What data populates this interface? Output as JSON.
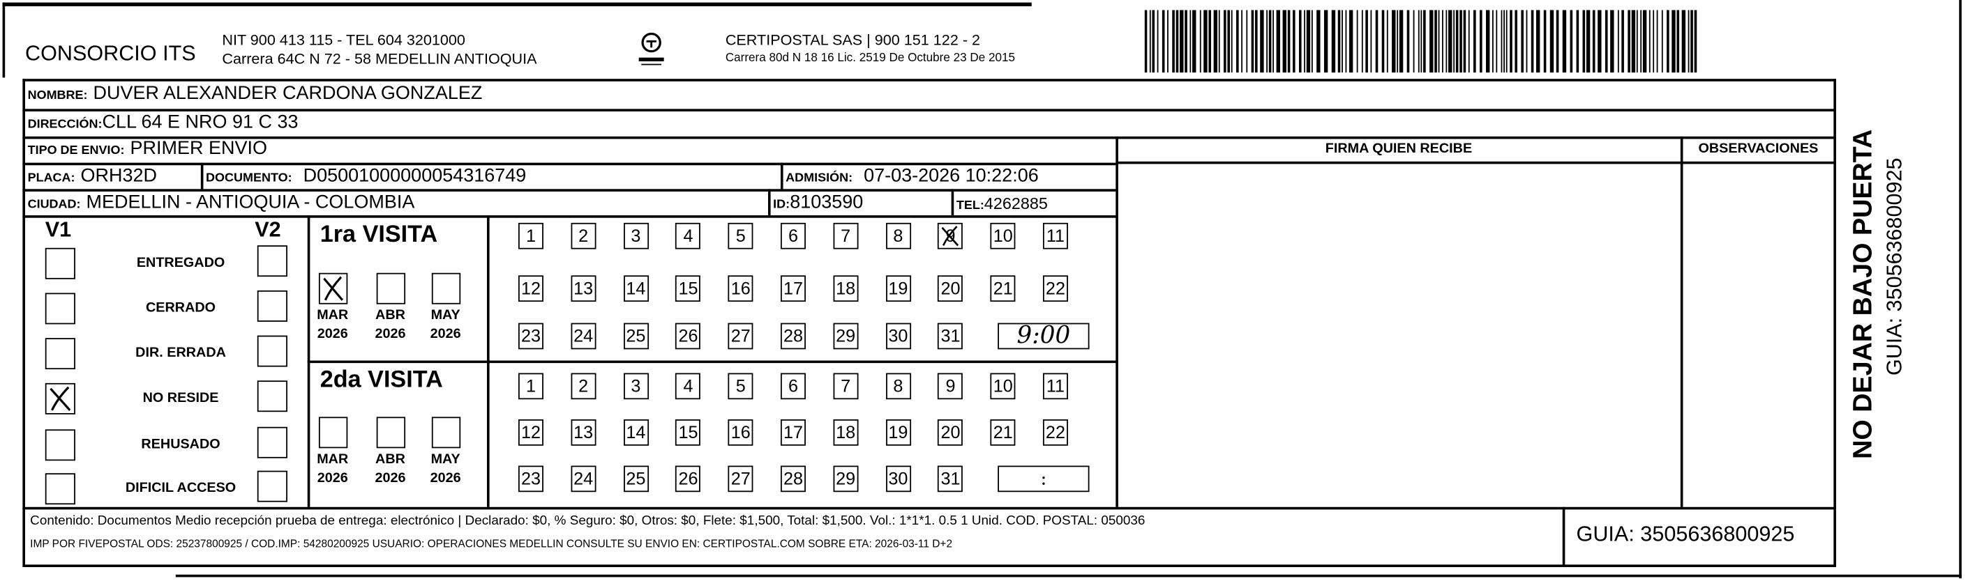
{
  "header": {
    "company": "CONSORCIO ITS",
    "nit_line": "NIT 900 413 115 - TEL 604 3201000",
    "address_line": "Carrera 64C N 72 - 58 MEDELLIN ANTIOQUIA",
    "logo_text": "CERTIPOSTAL",
    "carrier_line": "CERTIPOSTAL SAS | 900 151 122 - 2",
    "carrier_address": "Carrera 80d N 18 16  Lic. 2519 De Octubre 23 De 2015"
  },
  "recipient": {
    "nombre_label": "NOMBRE:",
    "nombre": "DUVER ALEXANDER CARDONA GONZALEZ",
    "direccion_label": "DIRECCIÓN:",
    "direccion": "CLL 64 E NRO 91 C 33",
    "tipo_label": "TIPO DE ENVIO:",
    "tipo": "PRIMER ENVIO",
    "placa_label": "PLACA:",
    "placa": "ORH32D",
    "documento_label": "DOCUMENTO:",
    "documento": "D05001000000054316749",
    "admision_label": "ADMISIÓN:",
    "admision": "07-03-2026 10:22:06",
    "ciudad_label": "CIUDAD:",
    "ciudad": "MEDELLIN - ANTIOQUIA - COLOMBIA",
    "id_label": "ID:",
    "id": "8103590",
    "tel_label": "TEL:",
    "tel": "4262885"
  },
  "signature": {
    "firma_header": "FIRMA QUIEN RECIBE",
    "obs_header": "OBSERVACIONES"
  },
  "status": {
    "v1_label": "V1",
    "v2_label": "V2",
    "items": [
      {
        "label": "ENTREGADO",
        "v1": false,
        "v2": false
      },
      {
        "label": "CERRADO",
        "v1": false,
        "v2": false
      },
      {
        "label": "DIR. ERRADA",
        "v1": false,
        "v2": false
      },
      {
        "label": "NO RESIDE",
        "v1": true,
        "v2": false
      },
      {
        "label": "REHUSADO",
        "v1": false,
        "v2": false
      },
      {
        "label": "DIFICIL ACCESO",
        "v1": false,
        "v2": false
      }
    ]
  },
  "visits": [
    {
      "title": "1ra VISITA",
      "months": [
        {
          "m": "MAR",
          "y": "2026",
          "checked": true
        },
        {
          "m": "ABR",
          "y": "2026",
          "checked": false
        },
        {
          "m": "MAY",
          "y": "2026",
          "checked": false
        }
      ],
      "days": [
        1,
        2,
        3,
        4,
        5,
        6,
        7,
        8,
        9,
        10,
        11,
        12,
        13,
        14,
        15,
        16,
        17,
        18,
        19,
        20,
        21,
        22,
        23,
        24,
        25,
        26,
        27,
        28,
        29,
        30,
        31
      ],
      "checked_day": 9,
      "time": "9:00"
    },
    {
      "title": "2da VISITA",
      "months": [
        {
          "m": "MAR",
          "y": "2026",
          "checked": false
        },
        {
          "m": "ABR",
          "y": "2026",
          "checked": false
        },
        {
          "m": "MAY",
          "y": "2026",
          "checked": false
        }
      ],
      "days": [
        1,
        2,
        3,
        4,
        5,
        6,
        7,
        8,
        9,
        10,
        11,
        12,
        13,
        14,
        15,
        16,
        17,
        18,
        19,
        20,
        21,
        22,
        23,
        24,
        25,
        26,
        27,
        28,
        29,
        30,
        31
      ],
      "checked_day": null,
      "time": ":"
    }
  ],
  "footer": {
    "line1": "Contenido: Documentos Medio recepción prueba de entrega: electrónico | Declarado: $0, % Seguro: $0, Otros: $0, Flete: $1,500, Total: $1,500. Vol.: 1*1*1. 0.5  1 Unid. COD. POSTAL: 050036",
    "line2": "IMP POR FIVEPOSTAL ODS: 25237800925 / COD.IMP: 54280200925 USUARIO: OPERACIONES MEDELLIN CONSULTE SU ENVIO EN: CERTIPOSTAL.COM SOBRE ETA: 2026-03-11 D+2",
    "guia": "GUIA: 3505636800925"
  },
  "side": {
    "warning": "NO DEJAR BAJO PUERTA",
    "guia": "GUIA: 3505636800925"
  }
}
